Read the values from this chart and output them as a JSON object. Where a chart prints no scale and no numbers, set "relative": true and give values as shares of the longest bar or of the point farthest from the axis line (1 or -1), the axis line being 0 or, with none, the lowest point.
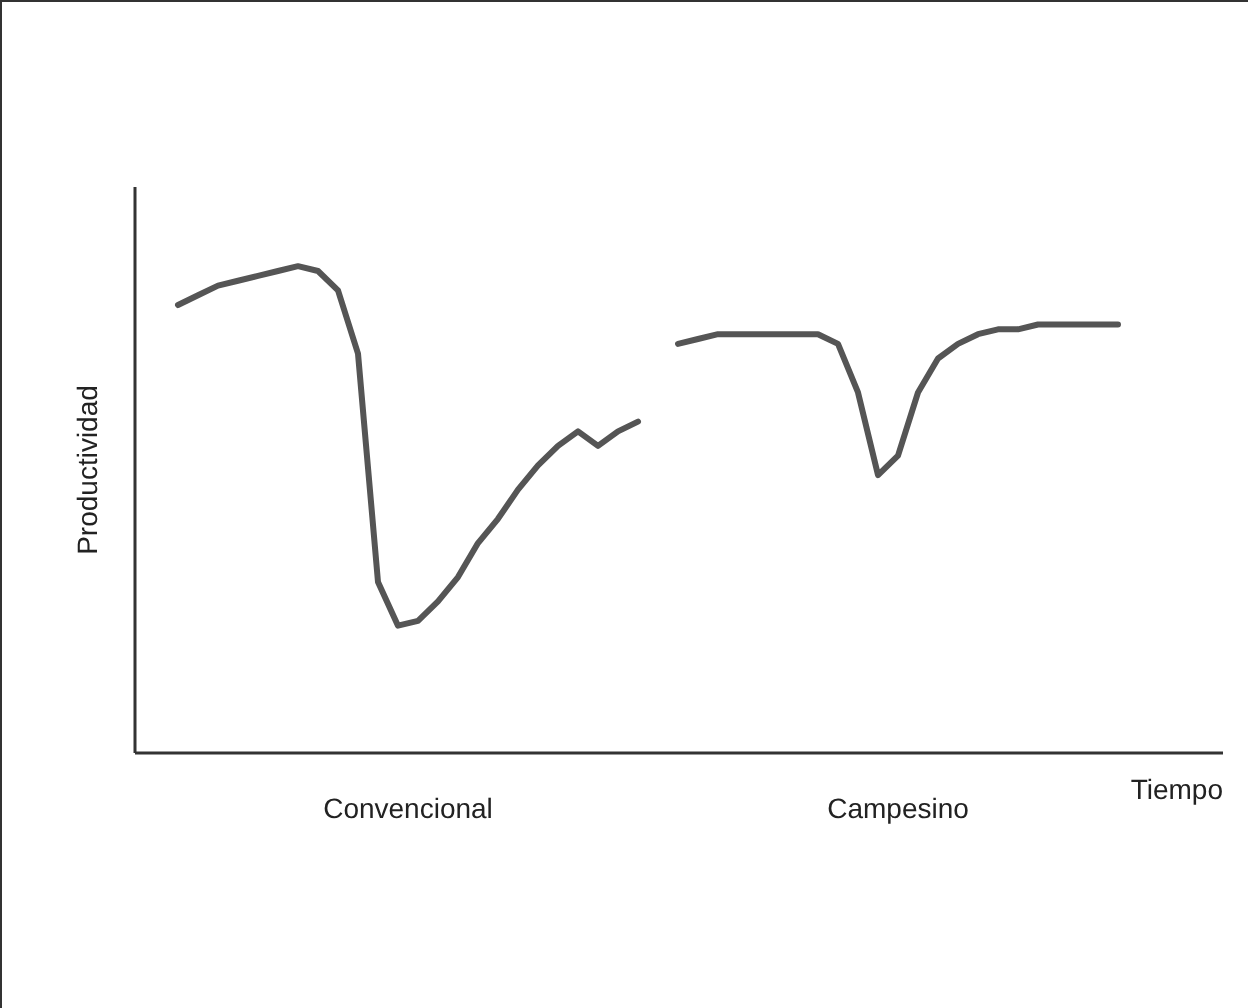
{
  "chart_data": {
    "type": "line",
    "relative": true,
    "annotations": [
      "Convencional",
      "Campesino"
    ],
    "xlabel": "Tiempo",
    "ylabel": "Productividad",
    "legend": false,
    "grid": false,
    "marker": "none",
    "line_style": "solid",
    "categories": [
      null,
      null,
      null,
      null,
      null,
      null,
      null,
      null,
      null,
      null,
      null,
      null,
      null,
      null,
      null,
      null,
      null,
      null,
      null,
      null,
      null,
      null,
      null,
      null,
      null,
      null,
      null,
      null,
      null,
      null,
      null,
      null,
      null,
      null,
      null,
      null,
      null,
      null,
      null,
      null,
      null,
      null,
      null,
      null,
      null,
      null,
      null,
      null
    ],
    "series": [
      {
        "color": "#555555",
        "values": [
          0.92,
          0.94,
          0.96,
          0.97,
          0.98,
          0.99,
          1.0,
          0.99,
          0.95,
          0.82,
          0.35,
          0.26,
          0.27,
          0.31,
          0.36,
          0.43,
          0.48,
          0.54,
          0.59,
          0.63,
          0.66,
          0.63,
          0.66,
          0.68,
          null,
          null,
          null,
          null,
          null,
          null,
          null,
          null,
          null,
          null,
          null,
          null,
          null,
          null,
          null,
          null,
          null,
          null,
          null,
          null,
          null,
          null,
          null,
          null
        ]
      },
      {
        "color": "#555555",
        "values": [
          null,
          null,
          null,
          null,
          null,
          null,
          null,
          null,
          null,
          null,
          null,
          null,
          null,
          null,
          null,
          null,
          null,
          null,
          null,
          null,
          null,
          null,
          null,
          null,
          null,
          0.84,
          0.85,
          0.86,
          0.86,
          0.86,
          0.86,
          0.86,
          0.86,
          0.84,
          0.74,
          0.57,
          0.61,
          0.74,
          0.81,
          0.84,
          0.86,
          0.87,
          0.87,
          0.88,
          0.88,
          0.88,
          0.88,
          0.88
        ]
      }
    ]
  }
}
